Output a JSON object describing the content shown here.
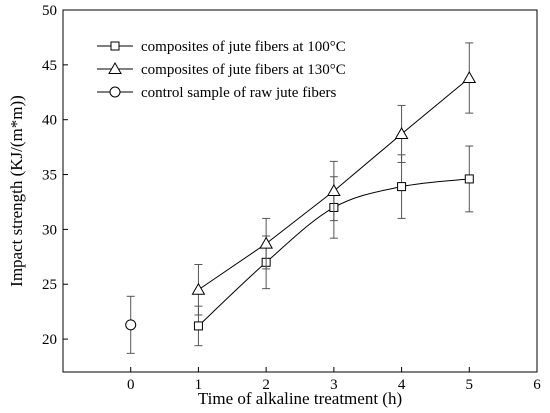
{
  "chart_data": {
    "type": "line",
    "xlabel": "Time of alkaline treatment (h)",
    "ylabel": "Impact strength (KJ/(m*m))",
    "xlim": [
      -1,
      6
    ],
    "ylim": [
      17,
      50
    ],
    "xticks": [
      "0",
      "1",
      "2",
      "3",
      "4",
      "5",
      "6"
    ],
    "yticks": [
      "20",
      "25",
      "30",
      "35",
      "40",
      "45",
      "50"
    ],
    "legend_position": "top-left",
    "series": [
      {
        "name": "composites of jute fibers at 100°C",
        "marker": "square",
        "curve": "smooth",
        "x": [
          1,
          2,
          3,
          4,
          5
        ],
        "y": [
          21.2,
          27.0,
          32.0,
          33.9,
          34.6
        ],
        "error": [
          1.8,
          2.4,
          2.8,
          2.9,
          3.0
        ]
      },
      {
        "name": "composites of jute fibers at 130°C",
        "marker": "triangle",
        "curve": "straight",
        "x": [
          1,
          2,
          3,
          4,
          5
        ],
        "y": [
          24.5,
          28.7,
          33.5,
          38.7,
          43.8
        ],
        "error": [
          2.3,
          2.3,
          2.7,
          2.6,
          3.2
        ]
      },
      {
        "name": "control sample of raw jute fibers",
        "marker": "circle",
        "curve": "none",
        "x": [
          0
        ],
        "y": [
          21.3
        ],
        "error": [
          2.6
        ]
      }
    ]
  }
}
